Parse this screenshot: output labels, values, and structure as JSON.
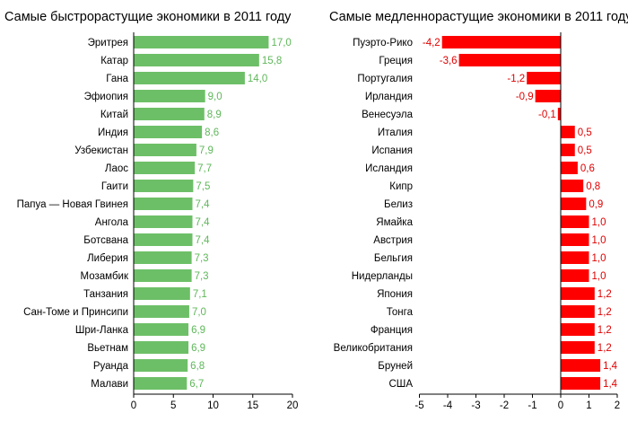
{
  "chart_data": [
    {
      "type": "bar",
      "orientation": "horizontal",
      "title": "Самые быстрорастущие экономики в 2011 году",
      "categories": [
        "Эритрея",
        "Катар",
        "Гана",
        "Эфиопия",
        "Китай",
        "Индия",
        "Узбекистан",
        "Лаос",
        "Гаити",
        "Папуа — Новая Гвинея",
        "Ангола",
        "Ботсвана",
        "Либерия",
        "Мозамбик",
        "Танзания",
        "Сан-Томе и Принсипи",
        "Шри-Ланка",
        "Вьетнам",
        "Руанда",
        "Малави"
      ],
      "values": [
        17.0,
        15.8,
        14.0,
        9.0,
        8.9,
        8.6,
        7.9,
        7.7,
        7.5,
        7.4,
        7.4,
        7.4,
        7.3,
        7.3,
        7.1,
        7.0,
        6.9,
        6.9,
        6.8,
        6.7
      ],
      "value_labels": [
        "17,0",
        "15,8",
        "14,0",
        "9,0",
        "8,9",
        "8,6",
        "7,9",
        "7,7",
        "7,5",
        "7,4",
        "7,4",
        "7,4",
        "7,3",
        "7,3",
        "7,1",
        "7,0",
        "6,9",
        "6,9",
        "6,8",
        "6,7"
      ],
      "xlim": [
        0,
        20
      ],
      "xticks": [
        "0",
        "5",
        "10",
        "15",
        "20"
      ],
      "xlabel": "",
      "ylabel": "",
      "grid": false,
      "color": "#6dbf67",
      "label_color": "#5fb75a"
    },
    {
      "type": "bar",
      "orientation": "horizontal",
      "title": "Самые медленнорастущие экономики в 2011 году",
      "categories": [
        "Пуэрто-Рико",
        "Греция",
        "Португалия",
        "Ирландия",
        "Венесуэла",
        "Италия",
        "Испания",
        "Исландия",
        "Кипр",
        "Белиз",
        "Ямайка",
        "Австрия",
        "Бельгия",
        "Нидерланды",
        "Япония",
        "Тонга",
        "Франция",
        "Великобритания",
        "Бруней",
        "США"
      ],
      "values": [
        -4.2,
        -3.6,
        -1.2,
        -0.9,
        -0.1,
        0.5,
        0.5,
        0.6,
        0.8,
        0.9,
        1.0,
        1.0,
        1.0,
        1.0,
        1.2,
        1.2,
        1.2,
        1.2,
        1.4,
        1.4
      ],
      "value_labels": [
        "-4,2",
        "-3,6",
        "-1,2",
        "-0,9",
        "-0,1",
        "0,5",
        "0,5",
        "0,6",
        "0,8",
        "0,9",
        "1,0",
        "1,0",
        "1,0",
        "1,0",
        "1,2",
        "1,2",
        "1,2",
        "1,2",
        "1,4",
        "1,4"
      ],
      "xlim": [
        -5,
        2
      ],
      "xticks": [
        "-5",
        "-4",
        "-3",
        "-2",
        "-1",
        "0",
        "1",
        "2"
      ],
      "xlabel": "",
      "ylabel": "",
      "grid": false,
      "color": "#ff0000",
      "label_color": "#e00000"
    }
  ]
}
